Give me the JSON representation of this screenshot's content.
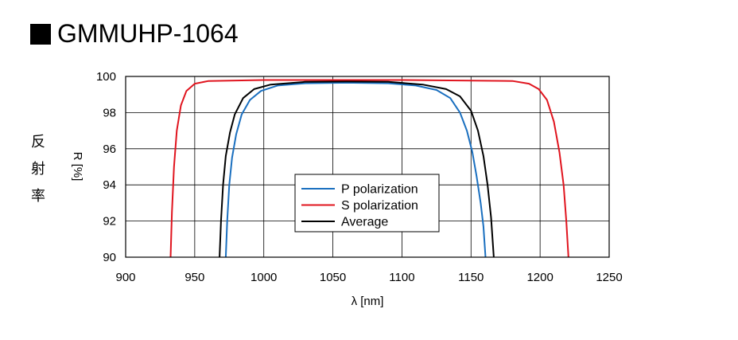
{
  "page": {
    "title": "GMMUHP-1064"
  },
  "chart_data": {
    "type": "line",
    "title": "GMMUHP-1064",
    "xlabel": "λ [nm]",
    "ylabel": "R [%]",
    "ylabel_jp": [
      "反",
      "射",
      "率"
    ],
    "xlim": [
      900,
      1250
    ],
    "ylim": [
      90,
      100
    ],
    "xticks": [
      900,
      950,
      1000,
      1050,
      1100,
      1150,
      1200,
      1250
    ],
    "yticks": [
      90,
      92,
      94,
      96,
      98,
      100
    ],
    "grid": true,
    "legend_position": "center",
    "series": [
      {
        "name": "P polarization",
        "color": "#1a6fbf",
        "points": [
          [
            972.5,
            90
          ],
          [
            973.5,
            92
          ],
          [
            975,
            94
          ],
          [
            977,
            95.5
          ],
          [
            980,
            96.8
          ],
          [
            984,
            97.9
          ],
          [
            990,
            98.7
          ],
          [
            998,
            99.2
          ],
          [
            1010,
            99.5
          ],
          [
            1030,
            99.62
          ],
          [
            1060,
            99.65
          ],
          [
            1090,
            99.62
          ],
          [
            1110,
            99.5
          ],
          [
            1125,
            99.25
          ],
          [
            1135,
            98.8
          ],
          [
            1142,
            98.0
          ],
          [
            1147,
            97.0
          ],
          [
            1151,
            95.8
          ],
          [
            1154,
            94.5
          ],
          [
            1157,
            93.0
          ],
          [
            1159,
            91.7
          ],
          [
            1160.5,
            90
          ]
        ]
      },
      {
        "name": "S polarization",
        "color": "#e0141e",
        "points": [
          [
            932.5,
            90
          ],
          [
            933.5,
            92.5
          ],
          [
            935,
            95
          ],
          [
            937,
            97
          ],
          [
            940,
            98.4
          ],
          [
            944,
            99.2
          ],
          [
            950,
            99.6
          ],
          [
            960,
            99.75
          ],
          [
            1000,
            99.8
          ],
          [
            1100,
            99.8
          ],
          [
            1180,
            99.75
          ],
          [
            1192,
            99.6
          ],
          [
            1199,
            99.3
          ],
          [
            1205,
            98.7
          ],
          [
            1210,
            97.5
          ],
          [
            1214,
            95.8
          ],
          [
            1217,
            94.0
          ],
          [
            1219,
            92.0
          ],
          [
            1220.5,
            90
          ]
        ]
      },
      {
        "name": "Average",
        "color": "#000000",
        "points": [
          [
            968,
            90
          ],
          [
            969,
            92
          ],
          [
            970.5,
            94
          ],
          [
            972.5,
            95.6
          ],
          [
            975.5,
            96.9
          ],
          [
            979,
            97.9
          ],
          [
            985,
            98.8
          ],
          [
            993,
            99.3
          ],
          [
            1005,
            99.55
          ],
          [
            1030,
            99.7
          ],
          [
            1060,
            99.72
          ],
          [
            1090,
            99.7
          ],
          [
            1115,
            99.55
          ],
          [
            1132,
            99.3
          ],
          [
            1142,
            98.9
          ],
          [
            1150,
            98.1
          ],
          [
            1155,
            97.0
          ],
          [
            1159,
            95.6
          ],
          [
            1162,
            94.0
          ],
          [
            1164.5,
            92.2
          ],
          [
            1166.5,
            90
          ]
        ]
      }
    ]
  }
}
